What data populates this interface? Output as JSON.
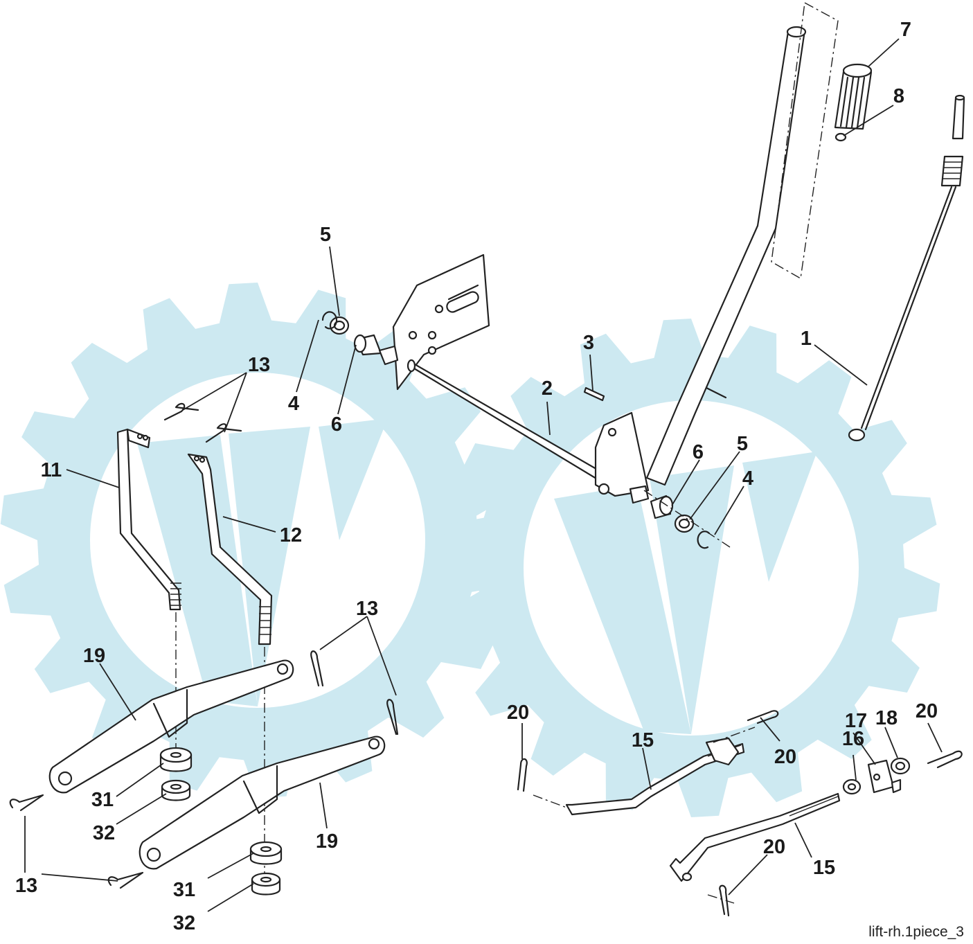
{
  "diagram": {
    "caption": "lift-rh.1piece_3",
    "watermark_color": "#cde9f1",
    "line_color": "#222222",
    "callouts": {
      "c1": "1",
      "c2": "2",
      "c3": "3",
      "c4a": "4",
      "c4b": "4",
      "c5a": "5",
      "c5b": "5",
      "c6a": "6",
      "c6b": "6",
      "c7": "7",
      "c8": "8",
      "c11": "11",
      "c12": "12",
      "c13a": "13",
      "c13b": "13",
      "c13c": "13",
      "c15a": "15",
      "c15b": "15",
      "c16": "16",
      "c17": "17",
      "c18": "18",
      "c19a": "19",
      "c19b": "19",
      "c20a": "20",
      "c20b": "20",
      "c20c": "20",
      "c20d": "20",
      "c31a": "31",
      "c31b": "31",
      "c32a": "32",
      "c32b": "32"
    }
  }
}
